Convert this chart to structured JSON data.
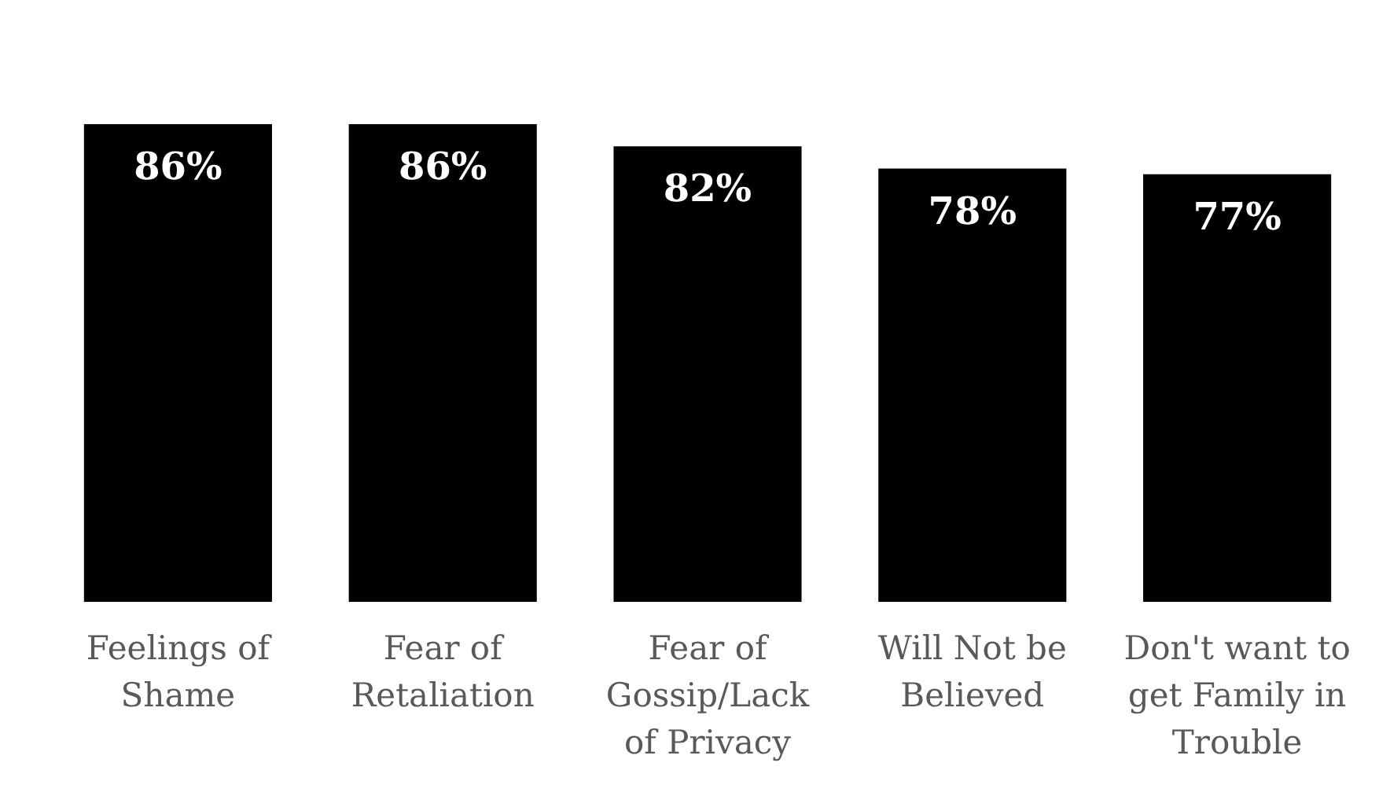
{
  "chart_data": {
    "type": "bar",
    "categories": [
      "Feelings of Shame",
      "Fear of Retaliation",
      "Fear of Gossip/Lack of Privacy",
      "Will Not be Believed",
      "Don't want to get Family in Trouble"
    ],
    "values": [
      86,
      86,
      82,
      78,
      77
    ],
    "value_labels": [
      "86%",
      "86%",
      "82%",
      "78%",
      "77%"
    ],
    "color": "#000000",
    "tick_labels": "x"
  }
}
